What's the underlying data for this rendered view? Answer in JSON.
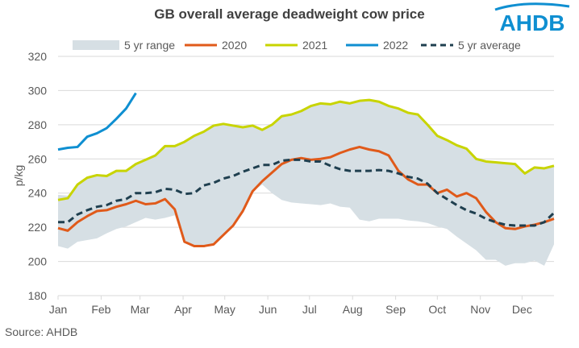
{
  "logo_text": "AHDB",
  "source": "Source: AHDB",
  "chart_data": {
    "type": "line",
    "title": "GB overall average deadweight cow price",
    "xlabel": "",
    "ylabel": "p/kg",
    "ylim": [
      180,
      320
    ],
    "yticks": [
      180,
      200,
      220,
      240,
      260,
      280,
      300,
      320
    ],
    "x_unit": "week of year",
    "x_tick_labels": [
      "Jan",
      "Feb",
      "Mar",
      "Apr",
      "May",
      "Jun",
      "Jul",
      "Aug",
      "Sep",
      "Oct",
      "Nov",
      "Dec"
    ],
    "grid": "horizontal",
    "legend_position": "top",
    "range": {
      "name": "5 yr range",
      "color": "#d6dfe4",
      "upper": [
        239,
        238.5,
        245,
        249,
        250.5,
        250,
        253,
        253,
        257,
        259.5,
        262,
        267.5,
        267.5,
        270,
        273.5,
        276,
        279.5,
        280.5,
        279.5,
        278.5,
        279.5,
        277,
        280,
        285,
        286,
        288,
        291,
        292.5,
        292,
        293.5,
        292.5,
        294,
        294.5,
        293.5,
        291,
        289.5,
        287,
        286,
        280,
        273.5,
        271,
        268,
        266,
        260,
        258.5,
        258,
        257.5,
        257,
        251.5,
        255,
        254.5,
        256
      ],
      "lower": [
        209,
        207.5,
        211.5,
        212.5,
        213.5,
        216.5,
        219,
        220.5,
        223,
        225.5,
        224.5,
        225.5,
        227,
        211.5,
        209,
        209,
        210,
        215.5,
        221,
        229.5,
        241,
        245,
        240,
        236,
        234.5,
        234,
        233.5,
        233,
        234,
        232,
        231.5,
        224.5,
        223.5,
        225,
        225,
        225,
        224,
        223.5,
        222.5,
        220.5,
        219,
        214.5,
        210.5,
        206.5,
        201,
        201,
        197.5,
        199,
        199,
        200.5,
        197.5,
        210
      ]
    },
    "series": [
      {
        "name": "2020",
        "color": "#e05a1a",
        "dashed": false,
        "values": [
          219.5,
          218,
          223,
          226.5,
          229.5,
          230,
          232,
          233.5,
          235.5,
          233.5,
          234,
          236.5,
          230.5,
          211.5,
          209,
          209,
          210,
          215.5,
          221,
          229.5,
          241,
          247,
          252,
          257,
          259.5,
          260.5,
          259.5,
          260,
          261,
          263.5,
          265.5,
          267,
          265.5,
          264.5,
          262,
          253,
          248,
          245,
          245,
          240,
          242,
          238,
          240,
          237,
          229,
          223,
          219.5,
          219,
          220.5,
          221.5,
          223,
          225
        ]
      },
      {
        "name": "2021",
        "color": "#c8d400",
        "dashed": false,
        "values": [
          236,
          237,
          245,
          249,
          250.5,
          250,
          253,
          253,
          257,
          259.5,
          262,
          267.5,
          267.5,
          270,
          273.5,
          276,
          279.5,
          280.5,
          279.5,
          278.5,
          279.5,
          277,
          280,
          285,
          286,
          288,
          291,
          292.5,
          292,
          293.5,
          292.5,
          294,
          294.5,
          293.5,
          291,
          289.5,
          287,
          286,
          280,
          273.5,
          271,
          268,
          266,
          260,
          258.5,
          258,
          257.5,
          257,
          251.5,
          255,
          254.5,
          256
        ]
      },
      {
        "name": "2022",
        "color": "#0f8fd1",
        "dashed": false,
        "values": [
          265.5,
          266.5,
          267,
          273,
          275,
          278,
          283.5,
          289.5,
          298.5
        ]
      },
      {
        "name": "5 yr average",
        "color": "#1f3f4f",
        "dashed": true,
        "values": [
          223,
          223,
          227.5,
          230,
          232,
          233,
          235.5,
          236.5,
          240,
          240,
          240.5,
          242.5,
          242,
          239.5,
          240,
          244.5,
          246,
          248.5,
          250,
          252.5,
          254.5,
          256.5,
          256.5,
          259,
          259.5,
          259.5,
          258.5,
          258.5,
          256,
          254,
          253,
          253,
          253,
          253.5,
          253,
          251.5,
          249.5,
          248.5,
          245.5,
          240,
          236.5,
          233,
          230,
          228,
          225,
          223,
          221.5,
          221,
          221,
          221,
          223,
          228.5
        ]
      }
    ]
  }
}
